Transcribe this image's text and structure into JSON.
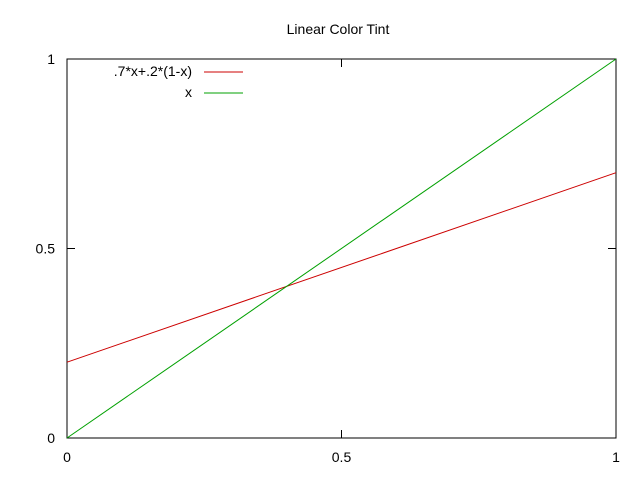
{
  "chart_data": {
    "type": "line",
    "title": "Linear Color Tint",
    "xlabel": "",
    "ylabel": "",
    "xlim": [
      0,
      1
    ],
    "ylim": [
      0,
      1
    ],
    "xticks": [
      {
        "value": 0,
        "label": "0"
      },
      {
        "value": 0.5,
        "label": "0.5"
      },
      {
        "value": 1,
        "label": "1"
      }
    ],
    "yticks": [
      {
        "value": 0,
        "label": "0"
      },
      {
        "value": 0.5,
        "label": "0.5"
      },
      {
        "value": 1,
        "label": "1"
      }
    ],
    "grid": false,
    "legend_position": "top-left",
    "x": [
      0,
      1
    ],
    "series": [
      {
        "name": ".7*x+.2*(1-x)",
        "values": [
          0.2,
          0.7
        ],
        "color": "#cc0000"
      },
      {
        "name": "x",
        "values": [
          0,
          1
        ],
        "color": "#00a000"
      }
    ]
  }
}
